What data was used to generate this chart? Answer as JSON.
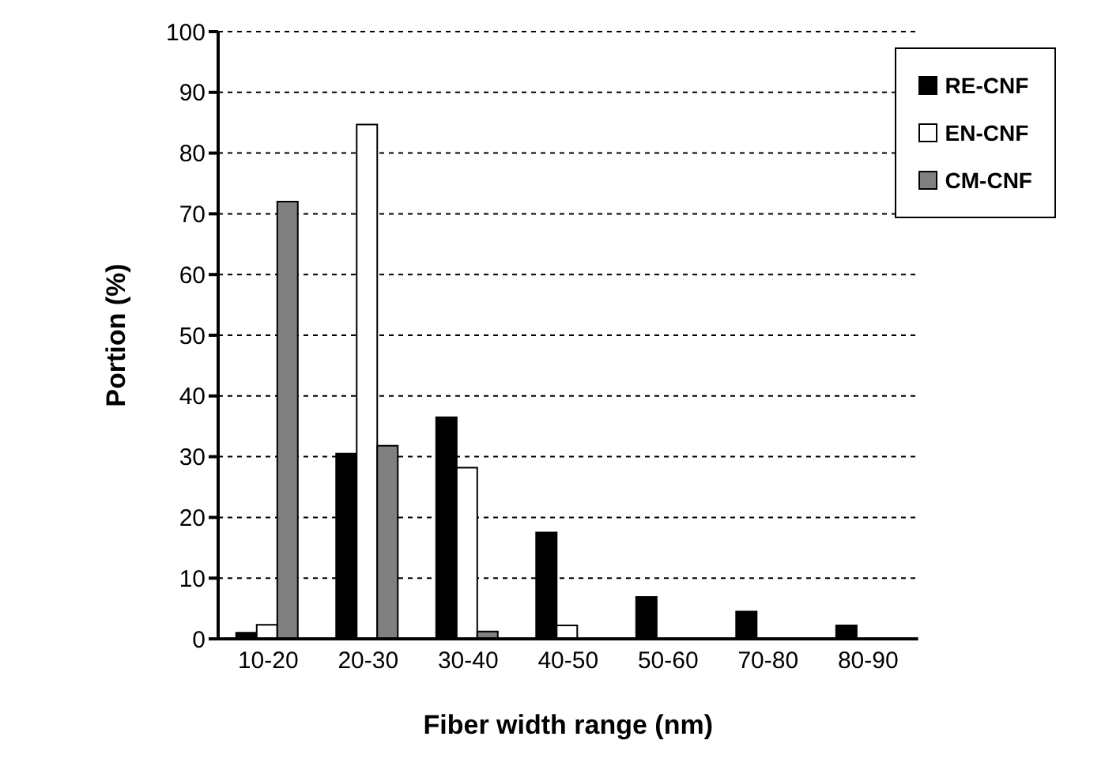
{
  "chart_data": {
    "type": "bar",
    "xlabel": "Fiber width range (nm)",
    "ylabel": "Portion (%)",
    "categories": [
      "10-20",
      "20-30",
      "30-40",
      "40-50",
      "50-60",
      "70-80",
      "80-90"
    ],
    "series": [
      {
        "name": "RE-CNF",
        "color": "#000000",
        "values": [
          1,
          30.5,
          36.5,
          17.5,
          6.9,
          4.5,
          2.2
        ]
      },
      {
        "name": "EN-CNF",
        "color": "#ffffff",
        "values": [
          2.3,
          84.7,
          28.2,
          2.2,
          0,
          0,
          0
        ]
      },
      {
        "name": "CM-CNF",
        "color": "#808080",
        "values": [
          72,
          31.8,
          1.2,
          0,
          0,
          0,
          0
        ]
      }
    ],
    "ylim": [
      0,
      100
    ],
    "yticks": [
      0,
      10,
      20,
      30,
      40,
      50,
      60,
      70,
      80,
      90,
      100
    ],
    "grid": "y",
    "legend": "top right"
  }
}
